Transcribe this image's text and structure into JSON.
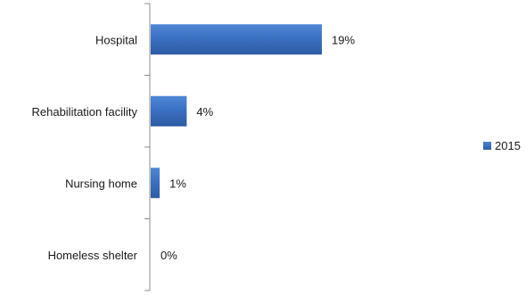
{
  "chart_data": {
    "type": "bar",
    "orientation": "horizontal",
    "categories": [
      "Hospital",
      "Rehabilitation facility",
      "Nursing home",
      "Homeless shelter"
    ],
    "series": [
      {
        "name": "2015",
        "values": [
          19,
          4,
          1,
          0
        ],
        "color": "#3a6fbf"
      }
    ],
    "value_labels": [
      "19%",
      "4%",
      "1%",
      "0%"
    ],
    "value_unit": "%",
    "xlim": [
      0,
      40
    ],
    "grid": false,
    "legend_position": "right",
    "title": "",
    "xlabel": "",
    "ylabel": ""
  }
}
